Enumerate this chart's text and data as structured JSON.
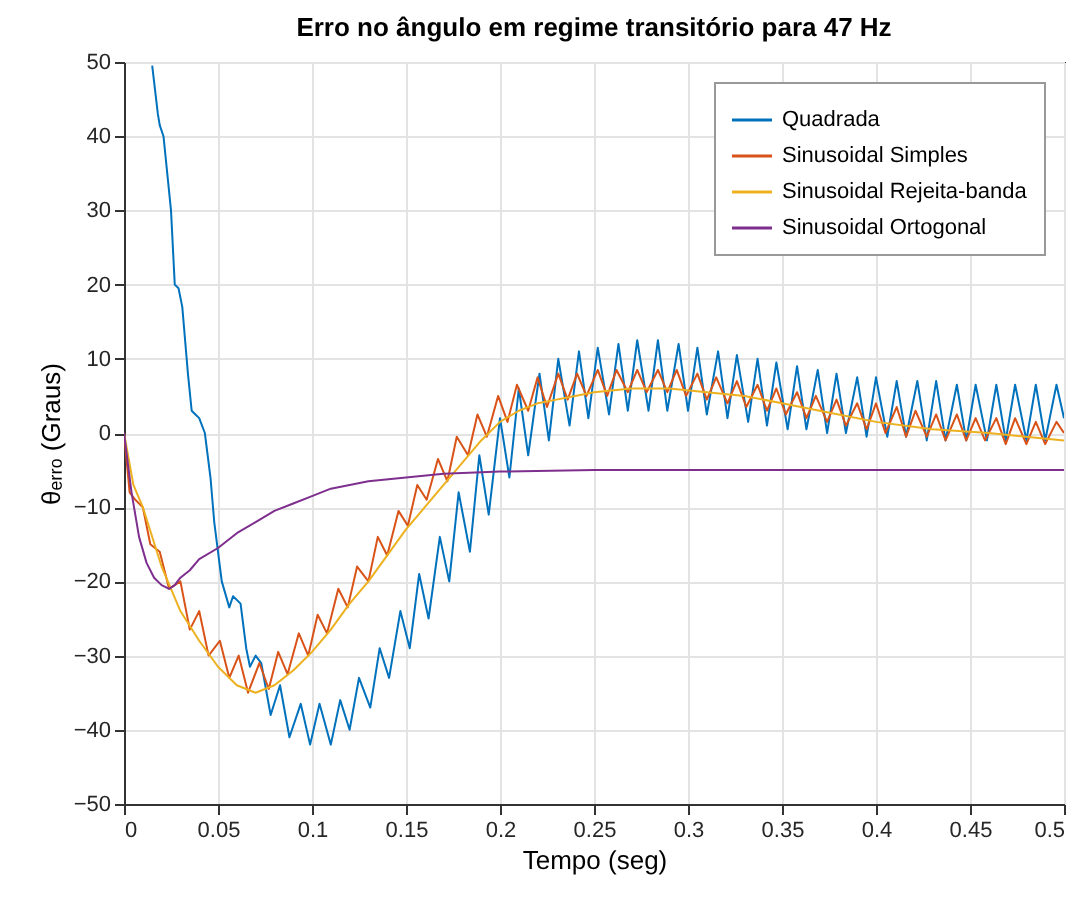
{
  "chart_data": {
    "type": "line",
    "title": "Erro no ângulo em regime transitório para 47 Hz",
    "xlabel": "Tempo (seg)",
    "ylabel": "θₑᵣᵣₒ (Graus)",
    "xlim": [
      0,
      0.5
    ],
    "xticks": [
      0,
      0.05,
      0.1,
      0.15,
      0.2,
      0.25,
      0.3,
      0.35,
      0.4,
      0.45,
      0.5
    ],
    "ylim": [
      -50,
      50
    ],
    "yticks": [
      -50,
      -40,
      -30,
      -20,
      -10,
      0,
      10,
      20,
      30,
      40,
      50
    ],
    "grid": true,
    "legend": "top right",
    "marker": "none",
    "line_style": "solid",
    "series": [
      {
        "name": "Quadrada",
        "color": "#0072bd",
        "x": [
          0.015,
          0.018,
          0.019,
          0.021,
          0.025,
          0.027,
          0.029,
          0.031,
          0.034,
          0.036,
          0.038,
          0.04,
          0.043,
          0.046,
          0.048,
          0.052,
          0.056,
          0.058,
          0.062,
          0.065,
          0.067,
          0.07,
          0.073,
          0.078,
          0.083,
          0.088,
          0.094,
          0.099,
          0.104,
          0.11,
          0.115,
          0.12,
          0.125,
          0.131,
          0.136,
          0.141,
          0.147,
          0.152,
          0.157,
          0.162,
          0.168,
          0.173,
          0.178,
          0.184,
          0.189,
          0.194,
          0.2,
          0.205,
          0.21,
          0.215,
          0.221,
          0.226,
          0.231,
          0.237,
          0.242,
          0.247,
          0.252,
          0.258,
          0.263,
          0.268,
          0.273,
          0.279,
          0.284,
          0.289,
          0.295,
          0.3,
          0.305,
          0.31,
          0.316,
          0.321,
          0.326,
          0.332,
          0.337,
          0.342,
          0.347,
          0.353,
          0.358,
          0.363,
          0.369,
          0.374,
          0.379,
          0.384,
          0.39,
          0.395,
          0.4,
          0.406,
          0.411,
          0.416,
          0.422,
          0.427,
          0.432,
          0.437,
          0.443,
          0.448,
          0.453,
          0.459,
          0.464,
          0.469,
          0.474,
          0.48,
          0.485,
          0.49,
          0.496,
          0.5
        ],
        "values": [
          49.5,
          43,
          41.5,
          40,
          30,
          20,
          19.5,
          17,
          8,
          3,
          2.5,
          2,
          0,
          -6,
          -12,
          -20,
          -23.5,
          -22,
          -23,
          -29,
          -31.5,
          -30,
          -31,
          -38,
          -34,
          -41,
          -36.5,
          -42,
          -36.5,
          -42,
          -36,
          -40,
          -33,
          -37,
          -29,
          -33,
          -24,
          -29,
          -19,
          -25,
          -14,
          -20,
          -8,
          -16,
          -3,
          -11,
          2,
          -6,
          6,
          -3,
          8,
          -1,
          10,
          1,
          11,
          2,
          11.5,
          2.5,
          12,
          3,
          12.5,
          3,
          12.5,
          3,
          12,
          3,
          11.5,
          2.5,
          11,
          2,
          10.5,
          1.5,
          10,
          1,
          9.5,
          0.5,
          9,
          0.5,
          8.5,
          0,
          8,
          0,
          7.5,
          -0.5,
          7.5,
          -0.5,
          7,
          -0.5,
          7,
          -1,
          7,
          -1,
          6.5,
          -1,
          6.5,
          -1,
          6.5,
          -1,
          6.5,
          -1,
          6.5,
          -1,
          6.5,
          2
        ]
      },
      {
        "name": "Sinusoidal Simples",
        "color": "#d95319",
        "x": [
          0,
          0.003,
          0.006,
          0.01,
          0.014,
          0.019,
          0.024,
          0.03,
          0.035,
          0.04,
          0.045,
          0.051,
          0.056,
          0.061,
          0.066,
          0.072,
          0.077,
          0.082,
          0.087,
          0.093,
          0.098,
          0.103,
          0.108,
          0.114,
          0.119,
          0.124,
          0.13,
          0.135,
          0.14,
          0.146,
          0.151,
          0.156,
          0.161,
          0.167,
          0.172,
          0.177,
          0.183,
          0.188,
          0.193,
          0.199,
          0.204,
          0.209,
          0.215,
          0.22,
          0.225,
          0.231,
          0.236,
          0.241,
          0.246,
          0.252,
          0.257,
          0.262,
          0.268,
          0.273,
          0.278,
          0.284,
          0.289,
          0.294,
          0.299,
          0.305,
          0.31,
          0.315,
          0.321,
          0.326,
          0.331,
          0.337,
          0.342,
          0.347,
          0.352,
          0.358,
          0.363,
          0.368,
          0.374,
          0.379,
          0.384,
          0.39,
          0.395,
          0.4,
          0.405,
          0.411,
          0.416,
          0.421,
          0.427,
          0.432,
          0.437,
          0.443,
          0.448,
          0.453,
          0.458,
          0.464,
          0.469,
          0.474,
          0.48,
          0.485,
          0.49,
          0.496,
          0.5
        ],
        "values": [
          0,
          -8,
          -9,
          -10,
          -15,
          -16,
          -21,
          -20,
          -26.5,
          -24,
          -30,
          -28,
          -33,
          -30,
          -35,
          -31,
          -34.5,
          -29.5,
          -32.5,
          -27,
          -30,
          -24.5,
          -27,
          -21,
          -23.5,
          -18,
          -20,
          -14,
          -16.5,
          -10.5,
          -12.5,
          -7,
          -9,
          -3.5,
          -6.5,
          -0.5,
          -3,
          2.5,
          -0.5,
          5,
          1.5,
          6.5,
          3,
          7.5,
          3.5,
          8,
          4.5,
          8,
          5,
          8.5,
          5,
          8.5,
          5.5,
          8.5,
          5.5,
          8.5,
          5.5,
          8.5,
          5,
          8,
          4.5,
          7.5,
          4,
          7,
          3.5,
          6.5,
          3,
          6,
          2.5,
          5.5,
          2,
          5,
          1.5,
          4.5,
          1,
          4,
          0.5,
          4,
          0,
          3.5,
          -0.5,
          3,
          -0.5,
          2.5,
          -1,
          2.5,
          -1,
          2,
          -1,
          2,
          -1.5,
          2,
          -1.5,
          1.5,
          -1.5,
          1.5,
          0
        ]
      },
      {
        "name": "Sinusoidal Rejeita-banda",
        "color": "#edb120",
        "x": [
          0,
          0.005,
          0.01,
          0.02,
          0.03,
          0.04,
          0.05,
          0.06,
          0.07,
          0.08,
          0.09,
          0.1,
          0.11,
          0.12,
          0.13,
          0.14,
          0.15,
          0.16,
          0.17,
          0.18,
          0.19,
          0.2,
          0.21,
          0.22,
          0.23,
          0.24,
          0.25,
          0.27,
          0.29,
          0.31,
          0.33,
          0.35,
          0.37,
          0.4,
          0.43,
          0.46,
          0.5
        ],
        "values": [
          0,
          -7,
          -10,
          -18,
          -24,
          -28,
          -31.5,
          -34,
          -35,
          -34,
          -32,
          -29.5,
          -26.5,
          -23,
          -20,
          -16.5,
          -13,
          -10,
          -7,
          -4,
          -1,
          1.5,
          3,
          4,
          4.5,
          5,
          5.5,
          6,
          6,
          5.5,
          5,
          4,
          3,
          1.5,
          0.5,
          0,
          -1
        ]
      },
      {
        "name": "Sinusoidal Ortogonal",
        "color": "#7e2f8e",
        "x": [
          0,
          0.004,
          0.008,
          0.012,
          0.016,
          0.02,
          0.024,
          0.027,
          0.03,
          0.035,
          0.04,
          0.05,
          0.06,
          0.07,
          0.08,
          0.09,
          0.1,
          0.11,
          0.12,
          0.13,
          0.15,
          0.17,
          0.2,
          0.25,
          0.3,
          0.35,
          0.4,
          0.45,
          0.5
        ],
        "values": [
          0,
          -8,
          -14,
          -17.5,
          -19.5,
          -20.5,
          -21,
          -20.5,
          -19.5,
          -18.5,
          -17,
          -15.5,
          -13.5,
          -12,
          -10.5,
          -9.5,
          -8.5,
          -7.5,
          -7,
          -6.5,
          -6,
          -5.5,
          -5.2,
          -5,
          -5,
          -5,
          -5,
          -5,
          -5
        ]
      }
    ]
  }
}
